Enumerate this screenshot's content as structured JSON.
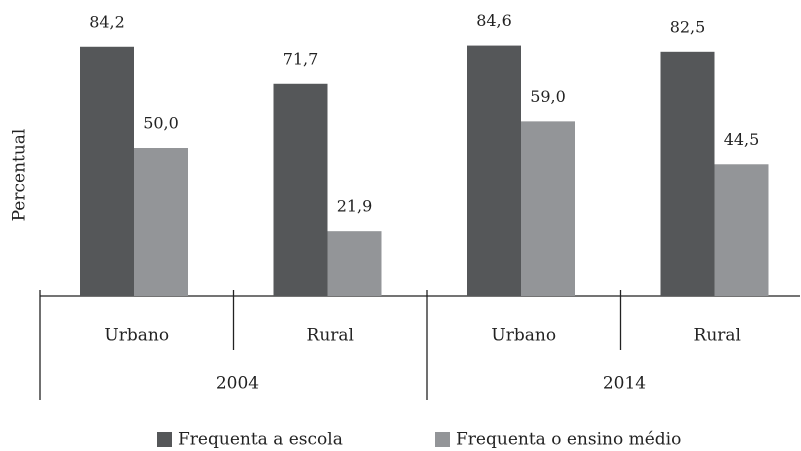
{
  "chart_data": {
    "type": "bar",
    "y_label": "Percentual",
    "categories": [
      "Urbano",
      "Rural",
      "Urbano",
      "Rural"
    ],
    "group_labels": [
      "2004",
      "2014"
    ],
    "series": [
      {
        "name": "Frequenta a escola",
        "color": "#555759",
        "values": [
          84.2,
          71.7,
          84.6,
          82.5
        ],
        "value_labels": [
          "84,2",
          "71,7",
          "84,6",
          "82,5"
        ]
      },
      {
        "name": "Frequenta o ensino médio",
        "color": "#939598",
        "values": [
          50.0,
          21.9,
          59.0,
          44.5
        ],
        "value_labels": [
          "50,0",
          "21,9",
          "59,0",
          "44,5"
        ]
      }
    ],
    "ylim": [
      0,
      100
    ]
  }
}
